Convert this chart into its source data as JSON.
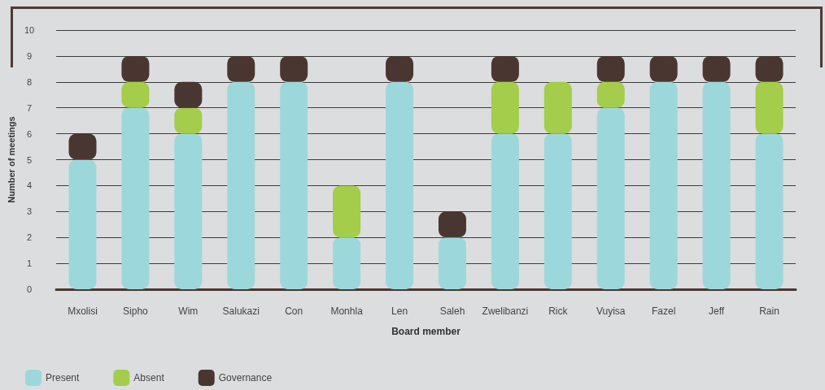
{
  "chart_data": {
    "type": "bar",
    "xlabel": "Board member",
    "ylabel": "Number of meetings",
    "categories": [
      "Mxolisi",
      "Sipho",
      "Wim",
      "Salukazi",
      "Con",
      "Monhla",
      "Len",
      "Saleh",
      "Zwelibanzi",
      "Rick",
      "Vuyisa",
      "Fazel",
      "Jeff",
      "Rain"
    ],
    "series": [
      {
        "name": "Present",
        "color": "#9cd8db",
        "values": [
          5,
          7,
          6,
          8,
          8,
          2,
          8,
          2,
          6,
          6,
          7,
          8,
          8,
          6
        ]
      },
      {
        "name": "Absent",
        "color": "#a3cd4a",
        "values": [
          0,
          1,
          1,
          0,
          0,
          2,
          0,
          0,
          2,
          2,
          1,
          0,
          0,
          2
        ]
      },
      {
        "name": "Governance",
        "color": "#4a3630",
        "values": [
          1,
          1,
          1,
          1,
          1,
          0,
          1,
          1,
          1,
          0,
          1,
          1,
          1,
          1
        ]
      }
    ],
    "stacked": true,
    "ylim": [
      0,
      10
    ],
    "yticks": [
      0,
      1,
      2,
      3,
      4,
      5,
      6,
      7,
      8,
      9,
      10
    ],
    "grid": "y",
    "legend": "bottom left"
  }
}
